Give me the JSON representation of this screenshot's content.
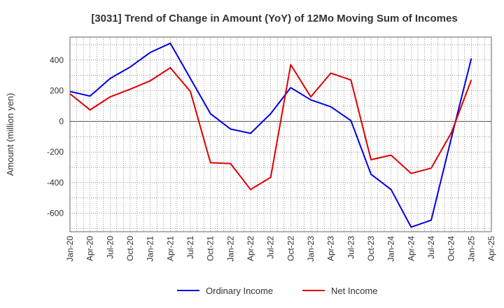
{
  "chart_data": {
    "type": "line",
    "title": "[3031]  Trend of Change in Amount (YoY) of 12Mo Moving Sum of Incomes",
    "xlabel": "",
    "ylabel": "Amount (million yen)",
    "categories": [
      "Jan-20",
      "Apr-20",
      "Jul-20",
      "Oct-20",
      "Jan-21",
      "Apr-21",
      "Jul-21",
      "Oct-21",
      "Jan-22",
      "Apr-22",
      "Jul-22",
      "Oct-22",
      "Jan-23",
      "Apr-23",
      "Jul-23",
      "Oct-23",
      "Jan-24",
      "Apr-24",
      "Jul-24",
      "Oct-24",
      "Jan-25",
      "Apr-25"
    ],
    "ylim": [
      -720,
      550
    ],
    "yticks": [
      400,
      200,
      0,
      -200,
      -400,
      -600
    ],
    "grid": true,
    "legend_position": "bottom",
    "series": [
      {
        "name": "Ordinary Income",
        "color": "#0000dd",
        "values": [
          195,
          165,
          280,
          355,
          450,
          510,
          280,
          50,
          -50,
          -78,
          50,
          220,
          140,
          95,
          5,
          -345,
          -445,
          -690,
          -645,
          -110,
          410,
          null
        ]
      },
      {
        "name": "Net Income",
        "color": "#dd0000",
        "values": [
          180,
          75,
          160,
          210,
          265,
          350,
          195,
          -270,
          -275,
          -445,
          -365,
          370,
          160,
          315,
          270,
          -250,
          -220,
          -340,
          -305,
          -75,
          270,
          null
        ]
      }
    ]
  }
}
